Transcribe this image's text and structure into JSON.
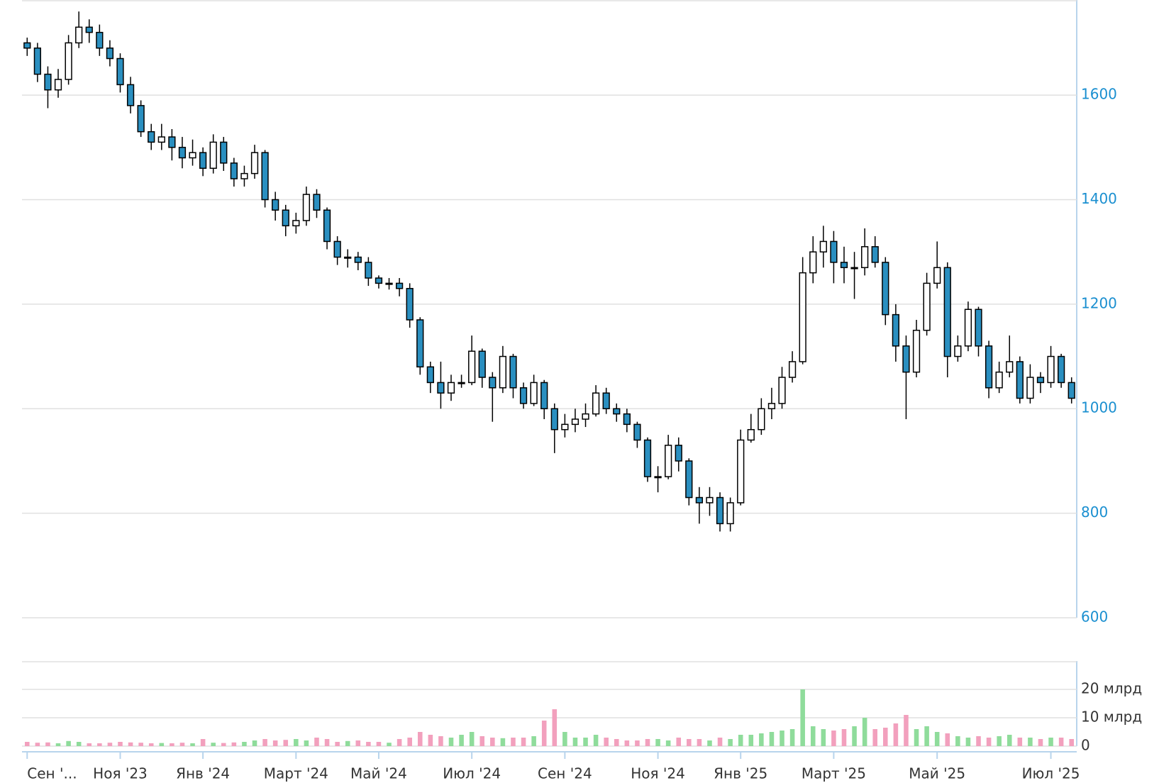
{
  "chart_data": [
    {
      "type": "candlestick",
      "categories": [
        "Сен '...",
        null,
        null,
        null,
        null,
        null,
        null,
        null,
        null,
        "Ноя '23",
        null,
        null,
        null,
        null,
        null,
        null,
        null,
        "Янв '24",
        null,
        null,
        null,
        null,
        null,
        null,
        null,
        null,
        "Март '24",
        null,
        null,
        null,
        null,
        null,
        null,
        null,
        "Май '24",
        null,
        null,
        null,
        null,
        null,
        null,
        null,
        null,
        "Июл '24",
        null,
        null,
        null,
        null,
        null,
        null,
        null,
        null,
        "Сен '24",
        null,
        null,
        null,
        null,
        null,
        null,
        null,
        null,
        "Ноя '24",
        null,
        null,
        null,
        null,
        null,
        null,
        null,
        "Янв '25",
        null,
        null,
        null,
        null,
        null,
        null,
        null,
        null,
        "Март '25",
        null,
        null,
        null,
        null,
        null,
        null,
        null,
        null,
        null,
        "Май '25",
        null,
        null,
        null,
        null,
        null,
        null,
        null,
        null,
        null,
        null,
        "Июл '25",
        null,
        null
      ],
      "open": [
        1700,
        1690,
        1640,
        1610,
        1630,
        1700,
        1730,
        1720,
        1690,
        1670,
        1620,
        1580,
        1530,
        1510,
        1520,
        1500,
        1480,
        1490,
        1460,
        1510,
        1470,
        1440,
        1450,
        1490,
        1400,
        1380,
        1350,
        1360,
        1410,
        1380,
        1320,
        1290,
        1290,
        1280,
        1250,
        1240,
        1240,
        1230,
        1170,
        1080,
        1050,
        1030,
        1050,
        1050,
        1110,
        1060,
        1040,
        1100,
        1040,
        1010,
        1050,
        1000,
        960,
        970,
        980,
        990,
        1030,
        1000,
        990,
        970,
        940,
        870,
        870,
        930,
        900,
        830,
        820,
        830,
        780,
        820,
        940,
        960,
        1000,
        1010,
        1060,
        1090,
        1260,
        1300,
        1320,
        1280,
        1270,
        1270,
        1310,
        1280,
        1180,
        1120,
        1070,
        1150,
        1240,
        1270,
        1100,
        1120,
        1190,
        1120,
        1040,
        1070,
        1090,
        1020,
        1060,
        1050,
        1100,
        1050
      ],
      "high": [
        1710,
        1700,
        1655,
        1650,
        1715,
        1760,
        1745,
        1735,
        1705,
        1680,
        1635,
        1590,
        1545,
        1545,
        1535,
        1520,
        1515,
        1500,
        1525,
        1520,
        1480,
        1465,
        1505,
        1495,
        1415,
        1390,
        1375,
        1425,
        1420,
        1385,
        1330,
        1305,
        1300,
        1290,
        1255,
        1250,
        1250,
        1240,
        1175,
        1090,
        1090,
        1065,
        1065,
        1140,
        1115,
        1070,
        1120,
        1105,
        1050,
        1065,
        1055,
        1010,
        990,
        1000,
        1010,
        1045,
        1040,
        1010,
        1000,
        975,
        945,
        890,
        950,
        945,
        905,
        850,
        850,
        840,
        830,
        960,
        990,
        1020,
        1040,
        1080,
        1110,
        1290,
        1330,
        1350,
        1340,
        1310,
        1300,
        1345,
        1330,
        1290,
        1200,
        1140,
        1170,
        1260,
        1320,
        1280,
        1140,
        1205,
        1195,
        1130,
        1090,
        1140,
        1100,
        1085,
        1070,
        1120,
        1105,
        1060
      ],
      "low": [
        1675,
        1625,
        1575,
        1595,
        1620,
        1690,
        1700,
        1675,
        1655,
        1605,
        1565,
        1520,
        1495,
        1495,
        1475,
        1460,
        1465,
        1445,
        1450,
        1455,
        1425,
        1425,
        1440,
        1385,
        1360,
        1330,
        1335,
        1350,
        1365,
        1305,
        1275,
        1270,
        1265,
        1235,
        1230,
        1228,
        1215,
        1155,
        1065,
        1030,
        1000,
        1015,
        1040,
        1045,
        1040,
        975,
        1030,
        1020,
        1000,
        1005,
        980,
        915,
        945,
        955,
        965,
        985,
        990,
        975,
        955,
        925,
        860,
        840,
        865,
        880,
        815,
        780,
        795,
        765,
        765,
        815,
        935,
        950,
        980,
        1000,
        1050,
        1085,
        1240,
        1270,
        1240,
        1240,
        1210,
        1255,
        1270,
        1160,
        1090,
        980,
        1060,
        1140,
        1230,
        1060,
        1090,
        1110,
        1100,
        1020,
        1030,
        1060,
        1010,
        1010,
        1030,
        1040,
        1040,
        1010
      ],
      "close": [
        1690,
        1640,
        1610,
        1630,
        1700,
        1730,
        1720,
        1690,
        1670,
        1620,
        1580,
        1530,
        1510,
        1520,
        1500,
        1480,
        1490,
        1460,
        1510,
        1470,
        1440,
        1450,
        1490,
        1400,
        1380,
        1350,
        1360,
        1410,
        1380,
        1320,
        1290,
        1290,
        1280,
        1250,
        1240,
        1240,
        1230,
        1170,
        1080,
        1050,
        1030,
        1050,
        1050,
        1110,
        1060,
        1040,
        1100,
        1040,
        1010,
        1050,
        1000,
        960,
        970,
        980,
        990,
        1030,
        1000,
        990,
        970,
        940,
        870,
        870,
        930,
        900,
        830,
        820,
        830,
        780,
        820,
        940,
        960,
        1000,
        1010,
        1060,
        1090,
        1260,
        1300,
        1320,
        1280,
        1270,
        1270,
        1310,
        1280,
        1180,
        1120,
        1070,
        1150,
        1240,
        1270,
        1100,
        1120,
        1190,
        1120,
        1040,
        1070,
        1090,
        1020,
        1060,
        1050,
        1100,
        1050,
        1020
      ],
      "up_color": "#ffffff",
      "down_color": "#2a8fc0",
      "outline_color": "#000000",
      "ylim": [
        600,
        1782
      ],
      "yticks": [
        600,
        800,
        1000,
        1200,
        1400,
        1600
      ],
      "grid": true
    },
    {
      "type": "bar",
      "values": [
        1.5,
        1.2,
        1.3,
        1,
        1.8,
        1.5,
        1,
        1,
        1.2,
        1.5,
        1.3,
        1.2,
        1,
        1.1,
        1,
        1.2,
        1,
        2.5,
        1.2,
        1.1,
        1.3,
        1.5,
        2,
        2.5,
        2,
        2.2,
        2.5,
        2,
        3,
        2.5,
        1.5,
        1.8,
        2,
        1.5,
        1.5,
        1.2,
        2.5,
        3,
        5,
        4,
        3.5,
        3,
        4,
        5,
        3.5,
        3,
        2.8,
        3,
        3,
        3.5,
        9,
        13,
        5,
        3,
        3,
        4,
        3,
        2.5,
        2,
        2,
        2.5,
        2.5,
        2,
        3,
        2.5,
        2.5,
        2,
        3,
        2.5,
        4,
        4,
        4.5,
        5,
        5.5,
        6,
        20,
        7,
        6,
        5.5,
        6,
        7,
        10,
        6,
        6.5,
        8,
        11,
        6,
        7,
        5,
        4.5,
        3.5,
        3,
        3.5,
        3,
        3.5,
        4,
        3,
        3,
        2.5,
        3,
        3,
        2.5
      ],
      "up_color": "#8fdc9b",
      "down_color": "#f2a0bd",
      "ylim": [
        0,
        30
      ],
      "yticks": [
        0,
        {
          "value": 10,
          "label": "10 млрд"
        },
        {
          "value": 20,
          "label": "20 млрд"
        }
      ],
      "grid": true
    }
  ]
}
